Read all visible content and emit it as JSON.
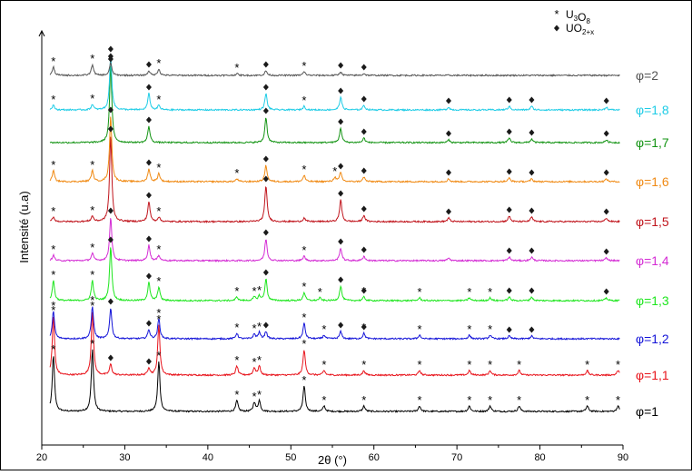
{
  "chart_data": {
    "type": "line",
    "title": "",
    "xlabel": "2θ (°)",
    "ylabel": "Intensité (u.a)",
    "xlim": [
      20,
      90
    ],
    "x_ticks": [
      20,
      30,
      40,
      50,
      60,
      70,
      80,
      90
    ],
    "grid": false,
    "legend": {
      "placement": "top-right",
      "entries": [
        {
          "marker": "star",
          "prefix": "U",
          "sub1": "3",
          "mid": "O",
          "sub2": "8"
        },
        {
          "marker": "diamond",
          "prefix": "UO",
          "sub1": "2+x",
          "mid": "",
          "sub2": ""
        }
      ]
    },
    "series": [
      {
        "name": "φ=1",
        "color": "#000000",
        "peaks": [
          [
            21.4,
            62
          ],
          [
            26.1,
            68
          ],
          [
            28.3,
            0
          ],
          [
            32.9,
            0
          ],
          [
            34.1,
            55
          ],
          [
            43.5,
            12
          ],
          [
            45.6,
            10
          ],
          [
            46.2,
            12
          ],
          [
            47.0,
            0
          ],
          [
            51.6,
            28
          ],
          [
            54.0,
            6
          ],
          [
            56.0,
            0
          ],
          [
            58.8,
            6
          ],
          [
            65.5,
            6
          ],
          [
            71.5,
            6
          ],
          [
            74.0,
            6
          ],
          [
            77.5,
            6
          ],
          [
            85.7,
            6
          ],
          [
            89.4,
            6
          ]
        ]
      },
      {
        "name": "φ=1,1",
        "color": "#e8141c",
        "peaks": [
          [
            21.4,
            65
          ],
          [
            26.1,
            70
          ],
          [
            28.3,
            12
          ],
          [
            32.9,
            8
          ],
          [
            34.1,
            55
          ],
          [
            43.5,
            10
          ],
          [
            45.6,
            8
          ],
          [
            46.2,
            10
          ],
          [
            47.0,
            0
          ],
          [
            51.6,
            28
          ],
          [
            54.0,
            5
          ],
          [
            56.0,
            0
          ],
          [
            58.8,
            5
          ],
          [
            65.5,
            5
          ],
          [
            71.5,
            5
          ],
          [
            74.0,
            5
          ],
          [
            77.5,
            5
          ],
          [
            85.7,
            5
          ],
          [
            89.4,
            5
          ]
        ]
      },
      {
        "name": "φ=1,2",
        "color": "#1414d8",
        "peaks": [
          [
            21.4,
            30
          ],
          [
            26.1,
            36
          ],
          [
            28.3,
            34
          ],
          [
            32.9,
            10
          ],
          [
            34.1,
            22
          ],
          [
            43.5,
            6
          ],
          [
            45.6,
            5
          ],
          [
            46.2,
            7
          ],
          [
            47.0,
            8
          ],
          [
            51.6,
            17
          ],
          [
            54.0,
            4
          ],
          [
            56.0,
            8
          ],
          [
            58.8,
            6
          ],
          [
            65.5,
            4
          ],
          [
            71.5,
            4
          ],
          [
            74.0,
            4
          ],
          [
            76.3,
            3
          ],
          [
            79.0,
            3
          ]
        ]
      },
      {
        "name": "φ=1,3",
        "color": "#1ee61e",
        "peaks": [
          [
            21.4,
            22
          ],
          [
            26.1,
            22
          ],
          [
            28.3,
            60
          ],
          [
            32.9,
            20
          ],
          [
            34.1,
            15
          ],
          [
            43.5,
            4
          ],
          [
            45.6,
            4
          ],
          [
            46.2,
            5
          ],
          [
            47.0,
            24
          ],
          [
            51.6,
            9
          ],
          [
            53.5,
            3
          ],
          [
            56.0,
            16
          ],
          [
            58.8,
            4
          ],
          [
            65.5,
            3
          ],
          [
            71.5,
            3
          ],
          [
            74.0,
            3
          ],
          [
            76.3,
            4
          ],
          [
            79.0,
            4
          ],
          [
            88.0,
            3
          ]
        ]
      },
      {
        "name": "φ=1,4",
        "color": "#d42cd4",
        "peaks": [
          [
            21.4,
            6
          ],
          [
            26.1,
            8
          ],
          [
            28.3,
            48
          ],
          [
            32.9,
            17
          ],
          [
            34.1,
            6
          ],
          [
            47.0,
            24
          ],
          [
            51.6,
            5
          ],
          [
            56.0,
            14
          ],
          [
            58.8,
            5
          ],
          [
            69.0,
            3
          ],
          [
            76.3,
            4
          ],
          [
            79.0,
            4
          ],
          [
            88.0,
            3
          ]
        ]
      },
      {
        "name": "φ=1,5",
        "color": "#c0141c",
        "peaks": [
          [
            21.4,
            5
          ],
          [
            26.1,
            6
          ],
          [
            28.3,
            95
          ],
          [
            32.9,
            22
          ],
          [
            34.1,
            5
          ],
          [
            47.0,
            40
          ],
          [
            51.6,
            4
          ],
          [
            56.0,
            24
          ],
          [
            58.8,
            7
          ],
          [
            69.0,
            4
          ],
          [
            76.3,
            6
          ],
          [
            79.0,
            5
          ],
          [
            88.0,
            4
          ]
        ]
      },
      {
        "name": "φ=1,6",
        "color": "#f08a14",
        "peaks": [
          [
            21.4,
            12
          ],
          [
            26.1,
            12
          ],
          [
            28.3,
            72
          ],
          [
            32.9,
            14
          ],
          [
            34.1,
            9
          ],
          [
            43.5,
            3
          ],
          [
            47.0,
            18
          ],
          [
            51.6,
            7
          ],
          [
            55.3,
            5
          ],
          [
            56.0,
            10
          ],
          [
            58.8,
            5
          ],
          [
            69.0,
            3
          ],
          [
            76.3,
            4
          ],
          [
            79.0,
            3
          ],
          [
            88.0,
            3
          ]
        ]
      },
      {
        "name": "φ=1,7",
        "color": "#149414",
        "peaks": [
          [
            28.3,
            85
          ],
          [
            32.9,
            18
          ],
          [
            47.0,
            28
          ],
          [
            56.0,
            16
          ],
          [
            58.8,
            5
          ],
          [
            69.0,
            3
          ],
          [
            76.3,
            5
          ],
          [
            79.0,
            4
          ],
          [
            88.0,
            3
          ]
        ]
      },
      {
        "name": "φ=1,8",
        "color": "#1ecce6",
        "peaks": [
          [
            21.4,
            5
          ],
          [
            26.1,
            6
          ],
          [
            28.3,
            60
          ],
          [
            32.9,
            18
          ],
          [
            34.1,
            5
          ],
          [
            47.0,
            18
          ],
          [
            51.6,
            4
          ],
          [
            56.0,
            14
          ],
          [
            58.8,
            5
          ],
          [
            69.0,
            3
          ],
          [
            76.3,
            4
          ],
          [
            79.0,
            4
          ],
          [
            88.0,
            3
          ]
        ]
      },
      {
        "name": "φ=2",
        "color": "#555555",
        "peaks": [
          [
            21.4,
            9
          ],
          [
            26.1,
            12
          ],
          [
            28.3,
            14
          ],
          [
            32.9,
            5
          ],
          [
            34.1,
            7
          ],
          [
            43.5,
            2
          ],
          [
            47.0,
            5
          ],
          [
            51.6,
            4
          ],
          [
            56.0,
            4
          ],
          [
            58.8,
            2
          ]
        ]
      }
    ],
    "markers": [
      {
        "series": "φ=1",
        "stars": [
          21.4,
          26.1,
          34.1,
          43.5,
          45.6,
          46.2,
          51.6,
          54.0,
          58.8,
          65.5,
          71.5,
          74.0,
          77.5,
          85.7,
          89.4
        ],
        "diamonds": []
      },
      {
        "series": "φ=1,1",
        "stars": [
          21.4,
          26.1,
          34.1,
          43.5,
          45.6,
          46.2,
          51.6,
          54.0,
          58.8,
          65.5,
          71.5,
          74.0,
          77.5,
          85.7,
          89.4
        ],
        "diamonds": [
          28.3,
          32.9
        ]
      },
      {
        "series": "φ=1,2",
        "stars": [
          21.4,
          26.1,
          34.1,
          43.5,
          45.6,
          46.2,
          51.6,
          54.0,
          58.8,
          65.5,
          71.5,
          74.0
        ],
        "diamonds": [
          28.3,
          32.9,
          47.0,
          56.0,
          58.8,
          76.3,
          79.0
        ]
      },
      {
        "series": "φ=1,3",
        "stars": [
          21.4,
          26.1,
          34.1,
          43.5,
          45.6,
          46.2,
          51.6,
          53.5,
          58.8,
          65.5,
          71.5,
          74.0
        ],
        "diamonds": [
          28.3,
          32.9,
          47.0,
          56.0,
          58.8,
          76.3,
          79.0,
          88.0
        ]
      },
      {
        "series": "φ=1,4",
        "stars": [
          21.4,
          26.1,
          34.1,
          51.6
        ],
        "diamonds": [
          28.3,
          32.9,
          47.0,
          56.0,
          58.8,
          76.3,
          79.0,
          88.0
        ]
      },
      {
        "series": "φ=1,5",
        "stars": [
          21.4,
          26.1,
          34.1
        ],
        "diamonds": [
          28.3,
          32.9,
          47.0,
          56.0,
          58.8,
          69.0,
          76.3,
          79.0,
          88.0
        ]
      },
      {
        "series": "φ=1,6",
        "stars": [
          21.4,
          26.1,
          34.1,
          43.5,
          51.6,
          55.3
        ],
        "diamonds": [
          28.3,
          32.9,
          47.0,
          56.0,
          58.8,
          69.0,
          76.3,
          79.0,
          88.0
        ]
      },
      {
        "series": "φ=1,7",
        "stars": [],
        "diamonds": [
          28.3,
          32.9,
          47.0,
          56.0,
          58.8,
          69.0,
          76.3,
          79.0,
          88.0
        ]
      },
      {
        "series": "φ=1,8",
        "stars": [
          21.4,
          26.1,
          34.1,
          51.6
        ],
        "diamonds": [
          28.3,
          32.9,
          47.0,
          56.0,
          58.8,
          69.0,
          76.3,
          79.0,
          88.0
        ]
      },
      {
        "series": "φ=2",
        "stars": [
          21.4,
          26.1,
          34.1,
          43.5,
          51.6
        ],
        "diamonds": [
          28.3,
          32.9,
          47.0,
          56.0,
          58.8
        ]
      }
    ]
  }
}
